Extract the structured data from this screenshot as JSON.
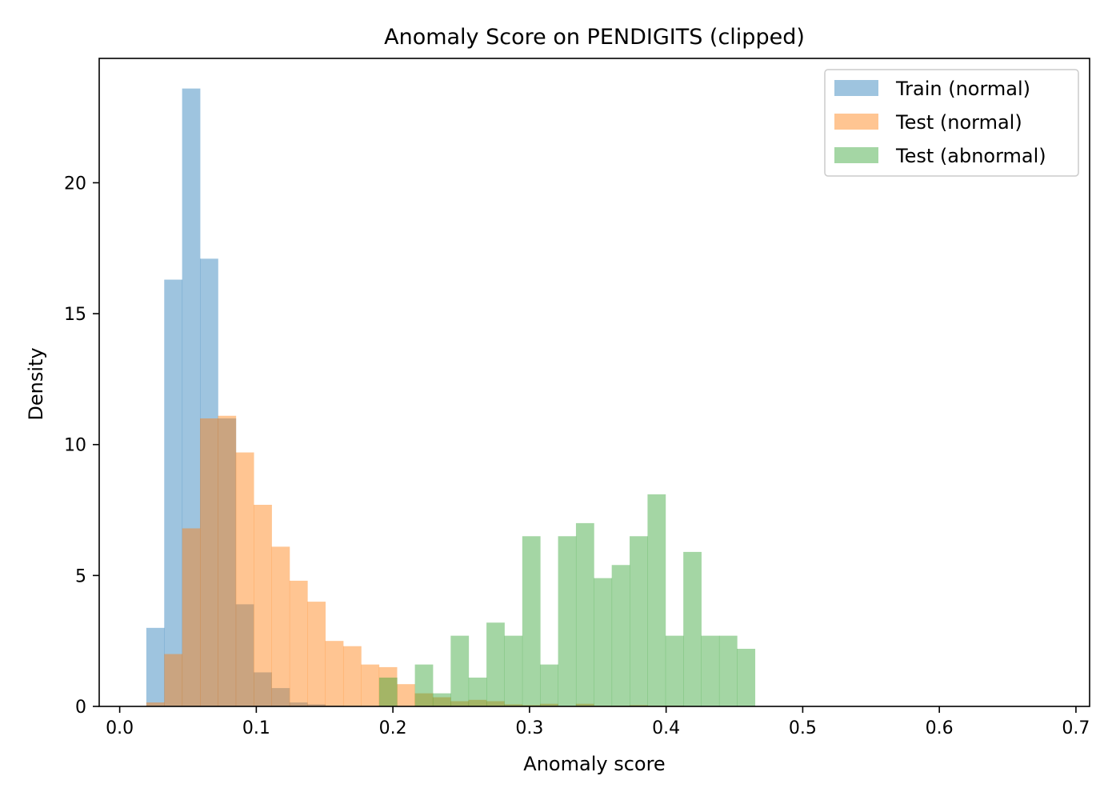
{
  "chart_data": {
    "type": "histogram",
    "title": "Anomaly Score on PENDIGITS (clipped)",
    "xlabel": "Anomaly score",
    "ylabel": "Density",
    "xlim": [
      -0.015,
      0.71
    ],
    "ylim": [
      0,
      24.75
    ],
    "xticks": [
      0.0,
      0.1,
      0.2,
      0.3,
      0.4,
      0.5,
      0.6,
      0.7
    ],
    "xtick_labels": [
      "0.0",
      "0.1",
      "0.2",
      "0.3",
      "0.4",
      "0.5",
      "0.6",
      "0.7"
    ],
    "yticks": [
      0,
      5,
      10,
      15,
      20
    ],
    "ytick_labels": [
      "0",
      "5",
      "10",
      "15",
      "20"
    ],
    "bin_width": 0.0131,
    "legend_position": "top-right",
    "grid": false,
    "series": [
      {
        "name": "Train (normal)",
        "color": "#1f77b4",
        "opacity": 0.43,
        "bin_start": 0.0195,
        "values": [
          3.0,
          16.3,
          23.6,
          17.1,
          11.0,
          3.9,
          1.3,
          0.7,
          0.15,
          0.08,
          0.03,
          0.02,
          0.01
        ]
      },
      {
        "name": "Test (normal)",
        "color": "#ff7f0e",
        "opacity": 0.45,
        "bin_start": 0.0195,
        "values": [
          0.15,
          2.0,
          6.8,
          11.0,
          11.1,
          9.7,
          7.7,
          6.1,
          4.8,
          4.0,
          2.5,
          2.3,
          1.6,
          1.5,
          0.85,
          0.5,
          0.35,
          0.2,
          0.25,
          0.2,
          0.08,
          0.05,
          0.1,
          0.02,
          0.1,
          0.03,
          0.03,
          0.05,
          0.03,
          0.03
        ]
      },
      {
        "name": "Test (abnormal)",
        "color": "#2ca02c",
        "opacity": 0.43,
        "bin_start": 0.1899,
        "values": [
          1.1,
          0,
          1.6,
          0.5,
          2.7,
          1.1,
          3.2,
          2.7,
          6.5,
          1.6,
          6.5,
          7.0,
          4.9,
          5.4,
          6.5,
          8.1,
          2.7,
          5.9,
          2.7,
          2.7,
          2.2
        ]
      }
    ]
  }
}
